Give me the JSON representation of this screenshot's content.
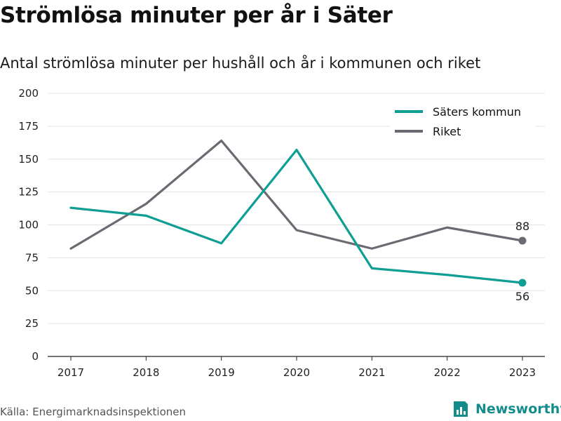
{
  "title": "Strömlösa minuter per år i Säter",
  "subtitle": "Antal strömlösa minuter per hushåll och år i kommunen och riket",
  "source": "Källa: Energimarknadsinspektionen",
  "brand": {
    "name": "Newsworthy",
    "icon": "newsworthy-logo-icon",
    "color": "#138c8c"
  },
  "chart_data": {
    "type": "line",
    "categories": [
      "2017",
      "2018",
      "2019",
      "2020",
      "2021",
      "2022",
      "2023"
    ],
    "ylim": [
      0,
      200
    ],
    "yticks": [
      0,
      25,
      50,
      75,
      100,
      125,
      150,
      175,
      200
    ],
    "grid": true,
    "legend_position": "top-right",
    "series": [
      {
        "name": "Säters kommun",
        "color": "#0f9e93",
        "values": [
          113,
          107,
          86,
          157,
          67,
          62,
          56
        ]
      },
      {
        "name": "Riket",
        "color": "#6b6a72",
        "values": [
          82,
          116,
          164,
          96,
          82,
          98,
          88
        ]
      }
    ],
    "end_labels": [
      {
        "series": "Säters kommun",
        "text": "56",
        "placement": "below"
      },
      {
        "series": "Riket",
        "text": "88",
        "placement": "above"
      }
    ]
  }
}
